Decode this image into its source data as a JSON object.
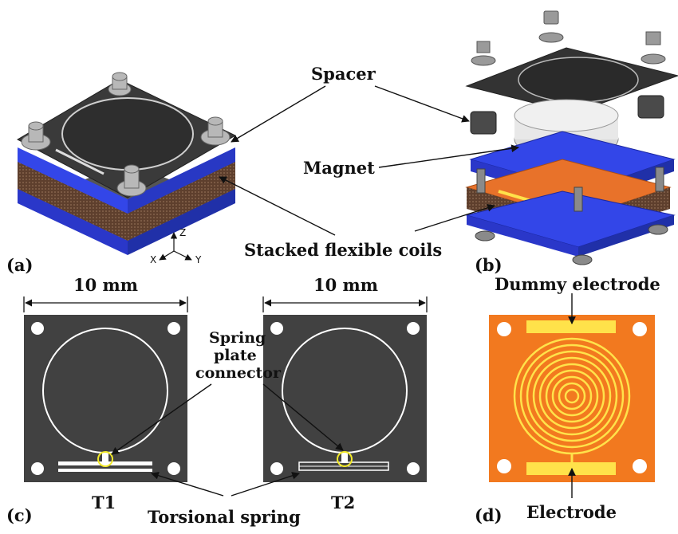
{
  "labels": {
    "spacer": "Spacer",
    "magnet": "Magnet",
    "stacked_coils": "Stacked flexible coils",
    "panel_a": "(a)",
    "panel_b": "(b)",
    "panel_c": "(c)",
    "panel_d": "(d)",
    "dim_left": "10 mm",
    "dim_right": "10 mm",
    "spring_plate_connector_l1": "Spring",
    "spring_plate_connector_l2": "plate",
    "spring_plate_connector_l3": "connector",
    "t1": "T1",
    "t2": "T2",
    "torsional_spring": "Torsional spring",
    "dummy_electrode": "Dummy electrode",
    "electrode": "Electrode",
    "axis_x": "X",
    "axis_y": "Y",
    "axis_z": "Z"
  },
  "colors": {
    "plate_dark": "#3d3d3d",
    "frame_blue": "#2f3fe0",
    "coil_brown": "#6b4a35",
    "pcb_orange": "#f2791f",
    "electrode_yellow": "#ffe24a",
    "highlight_circle": "#f2e92a"
  }
}
